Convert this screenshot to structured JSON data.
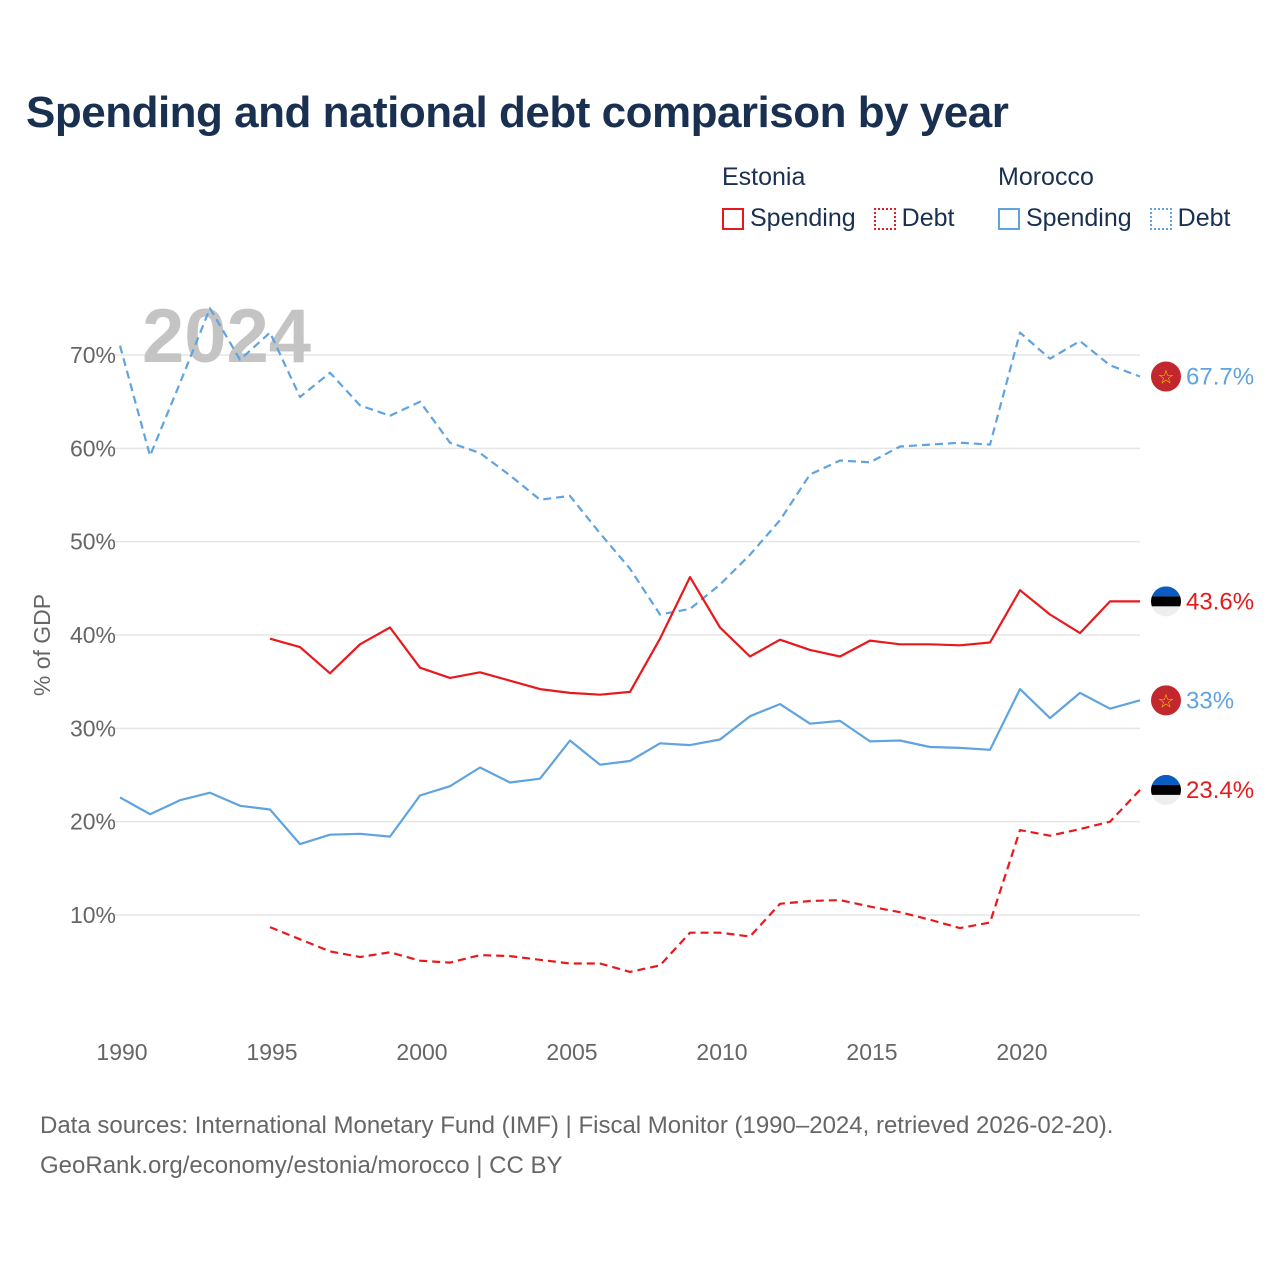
{
  "title": "Spending and national debt comparison by year",
  "legend": {
    "estonia": {
      "name": "Estonia",
      "spending": "Spending",
      "debt": "Debt"
    },
    "morocco": {
      "name": "Morocco",
      "spending": "Spending",
      "debt": "Debt"
    }
  },
  "sources": {
    "line1": "Data sources: International Monetary Fund (IMF) | Fiscal Monitor (1990–2024, retrieved 2026-02-20).",
    "line2": "GeoRank.org/economy/estonia/morocco | CC BY"
  },
  "colors": {
    "estonia": "#e8191c",
    "morocco": "#5fa3e0",
    "grid": "#e6e6e6",
    "year_label": "#c4c4c4"
  },
  "chart_data": {
    "type": "line",
    "title": "Spending and national debt comparison by year",
    "year_label": "2024",
    "ylabel": "% of GDP",
    "xlabel": "",
    "xlim": [
      1990,
      2024
    ],
    "ylim": [
      0,
      75
    ],
    "x_ticks": [
      1990,
      1995,
      2000,
      2005,
      2010,
      2015,
      2020
    ],
    "y_ticks": [
      10,
      20,
      30,
      40,
      50,
      60,
      70
    ],
    "y_tick_labels": [
      "10%",
      "20%",
      "30%",
      "40%",
      "50%",
      "60%",
      "70%"
    ],
    "legend_position": "top-right",
    "series": [
      {
        "name": "Morocco Debt",
        "country": "Morocco",
        "style": "dashed",
        "color": "#5fa3e0",
        "x": [
          1990,
          1991,
          1992,
          1993,
          1994,
          1995,
          1996,
          1997,
          1998,
          1999,
          2000,
          2001,
          2002,
          2003,
          2004,
          2005,
          2006,
          2007,
          2008,
          2009,
          2010,
          2011,
          2012,
          2013,
          2014,
          2015,
          2016,
          2017,
          2018,
          2019,
          2020,
          2021,
          2022,
          2023,
          2024
        ],
        "values": [
          71.0,
          59.2,
          67.0,
          75.0,
          69.5,
          72.4,
          65.5,
          68.1,
          64.6,
          63.5,
          65.0,
          60.6,
          59.5,
          57.1,
          54.5,
          54.9,
          50.9,
          47.1,
          42.2,
          42.8,
          45.4,
          48.6,
          52.3,
          57.2,
          58.7,
          58.5,
          60.2,
          60.4,
          60.6,
          60.4,
          72.4,
          69.6,
          71.5,
          68.9,
          67.7
        ],
        "end_label": "67.7%"
      },
      {
        "name": "Estonia Spending",
        "country": "Estonia",
        "style": "solid",
        "color": "#e8191c",
        "x": [
          1995,
          1996,
          1997,
          1998,
          1999,
          2000,
          2001,
          2002,
          2003,
          2004,
          2005,
          2006,
          2007,
          2008,
          2009,
          2010,
          2011,
          2012,
          2013,
          2014,
          2015,
          2016,
          2017,
          2018,
          2019,
          2020,
          2021,
          2022,
          2023,
          2024
        ],
        "values": [
          39.6,
          38.7,
          35.9,
          39.0,
          40.8,
          36.5,
          35.4,
          36.0,
          35.1,
          34.2,
          33.8,
          33.6,
          33.9,
          39.6,
          46.2,
          40.8,
          37.7,
          39.5,
          38.4,
          37.7,
          39.4,
          39.0,
          39.0,
          38.9,
          39.2,
          44.8,
          42.2,
          40.2,
          43.6,
          43.6
        ],
        "end_label": "43.6%"
      },
      {
        "name": "Morocco Spending",
        "country": "Morocco",
        "style": "solid",
        "color": "#5fa3e0",
        "x": [
          1990,
          1991,
          1992,
          1993,
          1994,
          1995,
          1996,
          1997,
          1998,
          1999,
          2000,
          2001,
          2002,
          2003,
          2004,
          2005,
          2006,
          2007,
          2008,
          2009,
          2010,
          2011,
          2012,
          2013,
          2014,
          2015,
          2016,
          2017,
          2018,
          2019,
          2020,
          2021,
          2022,
          2023,
          2024
        ],
        "values": [
          22.6,
          20.8,
          22.3,
          23.1,
          21.7,
          21.3,
          17.6,
          18.6,
          18.7,
          18.4,
          22.8,
          23.8,
          25.8,
          24.2,
          24.6,
          28.7,
          26.1,
          26.5,
          28.4,
          28.2,
          28.8,
          31.3,
          32.6,
          30.5,
          30.8,
          28.6,
          28.7,
          28.0,
          27.9,
          27.7,
          34.2,
          31.1,
          33.8,
          32.1,
          33.0
        ],
        "end_label": "33%"
      },
      {
        "name": "Estonia Debt",
        "country": "Estonia",
        "style": "dashed",
        "color": "#e8191c",
        "x": [
          1995,
          1996,
          1997,
          1998,
          1999,
          2000,
          2001,
          2002,
          2003,
          2004,
          2005,
          2006,
          2007,
          2008,
          2009,
          2010,
          2011,
          2012,
          2013,
          2014,
          2015,
          2016,
          2017,
          2018,
          2019,
          2020,
          2021,
          2022,
          2023,
          2024
        ],
        "values": [
          8.7,
          7.4,
          6.1,
          5.5,
          6.0,
          5.1,
          4.9,
          5.7,
          5.6,
          5.2,
          4.8,
          4.8,
          3.9,
          4.6,
          8.1,
          8.1,
          7.7,
          11.2,
          11.5,
          11.6,
          10.9,
          10.3,
          9.5,
          8.6,
          9.2,
          19.1,
          18.5,
          19.2,
          20.0,
          23.4
        ],
        "end_label": "23.4%"
      }
    ]
  }
}
